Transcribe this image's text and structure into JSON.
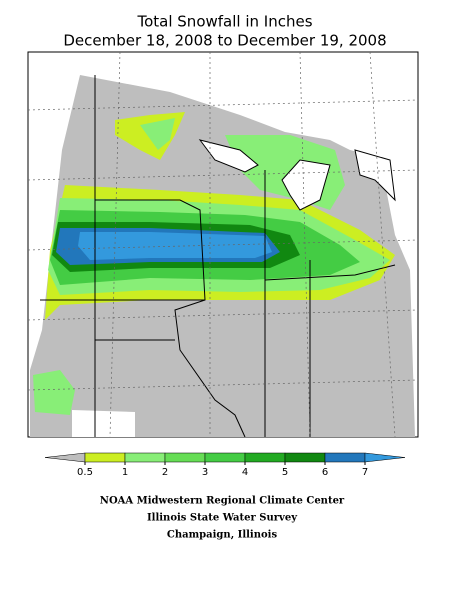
{
  "title": "Total Snowfall in Inches",
  "subtitle": "December 18, 2008 to December 19, 2008",
  "legend": {
    "ticks": [
      0.5,
      1,
      2,
      3,
      4,
      5,
      6,
      7
    ],
    "colors": [
      "#bebebe",
      "#ccee22",
      "#88ee77",
      "#66dd55",
      "#44cc44",
      "#22aa22",
      "#118811",
      "#2277bb",
      "#3399dd"
    ]
  },
  "credits": [
    "NOAA Midwestern Regional Climate Center",
    "Illinois State Water Survey",
    "Champaign, Illinois"
  ]
}
